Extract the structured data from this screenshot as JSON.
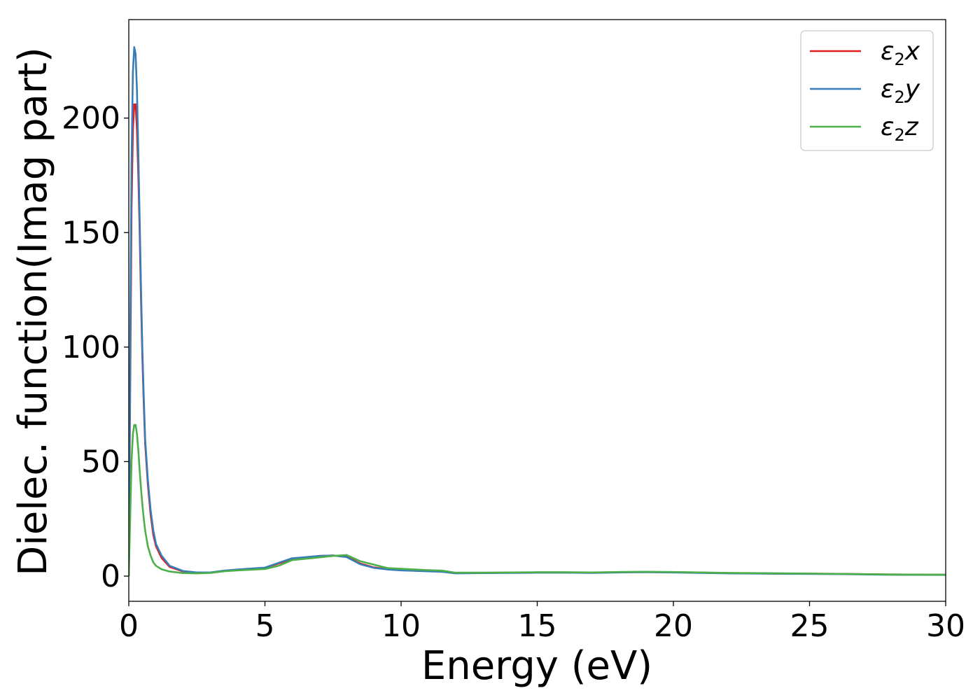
{
  "chart_data": {
    "type": "line",
    "xlabel": "Energy (eV)",
    "ylabel": "Dielec. function(Imag part)",
    "xlim": [
      0,
      30
    ],
    "ylim": [
      -11,
      243
    ],
    "xticks": [
      0,
      5,
      10,
      15,
      20,
      25,
      30
    ],
    "yticks": [
      0,
      50,
      100,
      150,
      200
    ],
    "grid": false,
    "legend": {
      "position": "top-right",
      "entries": [
        {
          "base": "ε",
          "sub": "2",
          "suffix": "x"
        },
        {
          "base": "ε",
          "sub": "2",
          "suffix": "y"
        },
        {
          "base": "ε",
          "sub": "2",
          "suffix": "z"
        }
      ]
    },
    "series": [
      {
        "name": "ε2x",
        "color": "#e41a1c",
        "x": [
          0,
          0.05,
          0.1,
          0.15,
          0.2,
          0.25,
          0.3,
          0.35,
          0.4,
          0.45,
          0.5,
          0.55,
          0.6,
          0.7,
          0.8,
          0.9,
          1.0,
          1.2,
          1.5,
          2.0,
          2.5,
          3.0,
          3.5,
          4.0,
          4.5,
          5.0,
          5.5,
          6.0,
          6.5,
          7.0,
          7.5,
          8.0,
          8.5,
          9.0,
          9.5,
          10.0,
          10.5,
          11.0,
          11.5,
          12.0,
          13.0,
          14.0,
          15.0,
          16.0,
          17.0,
          18.0,
          19.0,
          20.0,
          22.0,
          24.0,
          26.0,
          28.0,
          30.0
        ],
        "y": [
          0,
          80,
          160,
          195,
          206,
          206,
          195,
          175,
          150,
          120,
          95,
          75,
          58,
          40,
          27,
          18,
          13,
          8,
          4,
          2,
          1.5,
          1.5,
          2.3,
          2.8,
          3.2,
          3.6,
          5.5,
          7.5,
          8.2,
          8.8,
          9.0,
          8.5,
          5.5,
          3.8,
          3.0,
          2.6,
          2.4,
          2.2,
          2.0,
          1.3,
          1.4,
          1.5,
          1.6,
          1.6,
          1.5,
          1.7,
          1.8,
          1.7,
          1.3,
          1.1,
          1.0,
          0.7,
          0.6
        ]
      },
      {
        "name": "ε2y",
        "color": "#377eb8",
        "x": [
          0,
          0.05,
          0.1,
          0.15,
          0.2,
          0.25,
          0.3,
          0.35,
          0.4,
          0.45,
          0.5,
          0.55,
          0.6,
          0.7,
          0.8,
          0.9,
          1.0,
          1.2,
          1.5,
          2.0,
          2.5,
          3.0,
          3.5,
          4.0,
          4.5,
          5.0,
          5.5,
          6.0,
          6.5,
          7.0,
          7.5,
          8.0,
          8.5,
          9.0,
          9.5,
          10.0,
          10.5,
          11.0,
          11.5,
          12.0,
          13.0,
          14.0,
          15.0,
          16.0,
          17.0,
          18.0,
          19.0,
          20.0,
          22.0,
          24.0,
          26.0,
          28.0,
          30.0
        ],
        "y": [
          0,
          95,
          180,
          220,
          231,
          228,
          212,
          185,
          155,
          125,
          98,
          78,
          60,
          42,
          29,
          20,
          14,
          9,
          4.5,
          2.2,
          1.6,
          1.6,
          2.4,
          2.9,
          3.3,
          3.7,
          5.8,
          7.8,
          8.3,
          8.8,
          9.0,
          8.3,
          5.2,
          3.6,
          2.9,
          2.5,
          2.3,
          2.1,
          1.9,
          1.2,
          1.3,
          1.4,
          1.5,
          1.5,
          1.4,
          1.6,
          1.7,
          1.6,
          1.2,
          1.0,
          0.9,
          0.6,
          0.5
        ]
      },
      {
        "name": "ε2z",
        "color": "#4daf4a",
        "x": [
          0,
          0.05,
          0.1,
          0.15,
          0.2,
          0.25,
          0.3,
          0.35,
          0.4,
          0.45,
          0.5,
          0.55,
          0.6,
          0.7,
          0.8,
          0.9,
          1.0,
          1.2,
          1.5,
          2.0,
          2.5,
          3.0,
          3.5,
          4.0,
          4.5,
          5.0,
          5.5,
          6.0,
          6.5,
          7.0,
          7.5,
          8.0,
          8.5,
          9.0,
          9.5,
          10.0,
          10.5,
          11.0,
          11.5,
          12.0,
          13.0,
          14.0,
          15.0,
          16.0,
          17.0,
          18.0,
          19.0,
          20.0,
          22.0,
          24.0,
          26.0,
          28.0,
          30.0
        ],
        "y": [
          0,
          25,
          50,
          62,
          66,
          66,
          62,
          55,
          46,
          38,
          31,
          25,
          20,
          13,
          9,
          6,
          4.5,
          3,
          2,
          1.3,
          1.2,
          1.4,
          2.1,
          2.5,
          2.8,
          3.1,
          4.5,
          7.0,
          7.6,
          8.2,
          8.8,
          9.2,
          6.5,
          5.0,
          3.5,
          3.2,
          2.9,
          2.6,
          2.4,
          1.5,
          1.5,
          1.6,
          1.7,
          1.7,
          1.6,
          1.8,
          1.9,
          1.8,
          1.4,
          1.2,
          1.0,
          0.7,
          0.6
        ]
      }
    ]
  }
}
